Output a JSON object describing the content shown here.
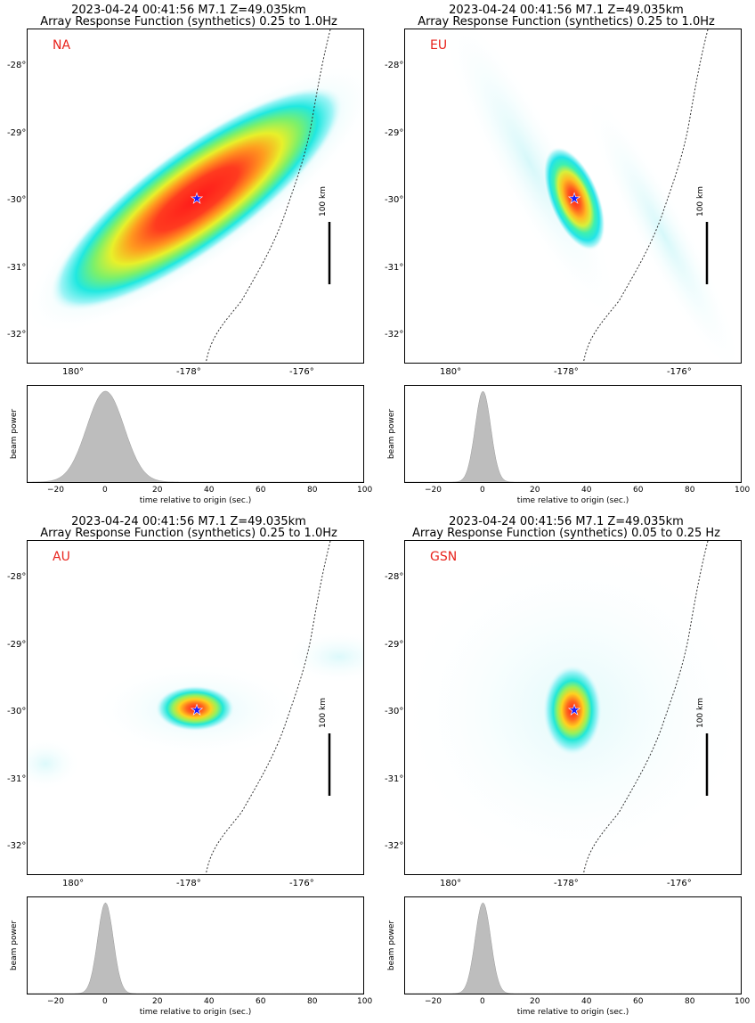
{
  "panels": [
    {
      "title_line1": "2023-04-24 00:41:56 M7.1 Z=49.035km",
      "title_line2": "Array Response Function (synthetics) 0.25 to 1.0Hz",
      "network": "NA"
    },
    {
      "title_line1": "2023-04-24 00:41:56 M7.1 Z=49.035km",
      "title_line2": "Array Response Function (synthetics) 0.25 to 1.0Hz",
      "network": "EU"
    },
    {
      "title_line1": "2023-04-24 00:41:56 M7.1 Z=49.035km",
      "title_line2": "Array Response Function (synthetics) 0.25 to 1.0Hz",
      "network": "AU"
    },
    {
      "title_line1": "2023-04-24 00:41:56 M7.1 Z=49.035km",
      "title_line2": "Array Response Function (synthetics) 0.05 to 0.25 Hz",
      "network": "GSN"
    }
  ],
  "map_axes": {
    "lat_ticks": [
      "-28°",
      "-29°",
      "-30°",
      "-31°",
      "-32°"
    ],
    "lon_ticks": [
      "180°",
      "-178°",
      "-176°"
    ],
    "scale_bar_label": "100 km"
  },
  "beam_axes": {
    "ylabel": "beam power",
    "xlabel": "time relative to origin (sec.)",
    "x_ticks": [
      "−20",
      "0",
      "20",
      "40",
      "60",
      "80",
      "100"
    ]
  },
  "chart_data": [
    {
      "type": "heatmap",
      "network": "NA",
      "epicenter": {
        "lon": -177.83,
        "lat": -29.94
      },
      "response_peak": {
        "orientation": "SW-NE",
        "elongation": "strong"
      },
      "beam_power": {
        "type": "area",
        "xlim": [
          -30,
          100
        ],
        "peak_time": 0,
        "width_s": 12
      }
    },
    {
      "type": "heatmap",
      "network": "EU",
      "epicenter": {
        "lon": -177.83,
        "lat": -29.94
      },
      "response_peak": {
        "orientation": "NW-SE",
        "elongation": "moderate"
      },
      "beam_power": {
        "type": "area",
        "xlim": [
          -30,
          100
        ],
        "peak_time": 0,
        "width_s": 5
      }
    },
    {
      "type": "heatmap",
      "network": "AU",
      "epicenter": {
        "lon": -177.83,
        "lat": -29.94
      },
      "response_peak": {
        "orientation": "E-W",
        "elongation": "weak"
      },
      "beam_power": {
        "type": "area",
        "xlim": [
          -30,
          100
        ],
        "peak_time": 0,
        "width_s": 5
      }
    },
    {
      "type": "heatmap",
      "network": "GSN",
      "epicenter": {
        "lon": -177.83,
        "lat": -29.94
      },
      "response_peak": {
        "orientation": "N-S",
        "elongation": "weak"
      },
      "beam_power": {
        "type": "area",
        "xlim": [
          -30,
          100
        ],
        "peak_time": 0,
        "width_s": 5
      }
    }
  ]
}
